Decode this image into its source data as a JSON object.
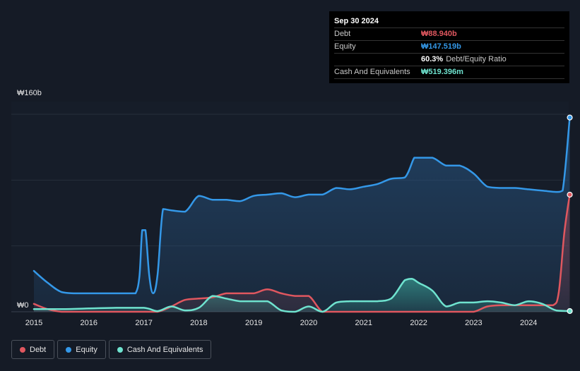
{
  "tooltip": {
    "date": "Sep 30 2024",
    "rows": [
      {
        "label": "Debt",
        "value": "₩88.940b",
        "color": "#e0575f",
        "extra": ""
      },
      {
        "label": "Equity",
        "value": "₩147.519b",
        "color": "#3498e8",
        "extra": ""
      },
      {
        "label": "",
        "value": "60.3%",
        "color": "#ffffff",
        "extra": "Debt/Equity Ratio"
      },
      {
        "label": "Cash And Equivalents",
        "value": "₩519.396m",
        "color": "#6fe3cf",
        "extra": ""
      }
    ]
  },
  "legend": [
    {
      "label": "Debt",
      "color": "#e0575f"
    },
    {
      "label": "Equity",
      "color": "#3498e8"
    },
    {
      "label": "Cash And Equivalents",
      "color": "#6fe3cf"
    }
  ],
  "chart_data": {
    "type": "area",
    "title": "",
    "xlabel": "",
    "ylabel": "",
    "unit": "₩ billions",
    "ylim": [
      0,
      160
    ],
    "xlim": [
      2015.0,
      2024.75
    ],
    "y_tick_labels": [
      {
        "value": 0,
        "label": "₩0"
      },
      {
        "value": 160,
        "label": "₩160b"
      }
    ],
    "y_gridlines": [
      0,
      50,
      100,
      150
    ],
    "x_ticks": [
      2015,
      2016,
      2017,
      2018,
      2019,
      2020,
      2021,
      2022,
      2023,
      2024
    ],
    "x_tick_labels": [
      "2015",
      "2016",
      "2017",
      "2018",
      "2019",
      "2020",
      "2021",
      "2022",
      "2023",
      "2024"
    ],
    "series": [
      {
        "name": "Equity",
        "color": "#3498e8",
        "x": [
          2015.0,
          2015.25,
          2015.5,
          2015.75,
          2016.0,
          2016.25,
          2016.5,
          2016.75,
          2016.85,
          2016.92,
          2016.97,
          2017.03,
          2017.1,
          2017.17,
          2017.25,
          2017.35,
          2017.5,
          2017.75,
          2018.0,
          2018.25,
          2018.5,
          2018.75,
          2019.0,
          2019.25,
          2019.5,
          2019.75,
          2020.0,
          2020.25,
          2020.5,
          2020.75,
          2021.0,
          2021.25,
          2021.5,
          2021.75,
          2021.92,
          2022.0,
          2022.25,
          2022.5,
          2022.75,
          2023.0,
          2023.25,
          2023.5,
          2023.75,
          2024.0,
          2024.25,
          2024.5,
          2024.62,
          2024.75
        ],
        "values": [
          31,
          22,
          15,
          14,
          14,
          14,
          14,
          14,
          14,
          27,
          62,
          62,
          27,
          14,
          28,
          78,
          77,
          76,
          88,
          85,
          85,
          84,
          88,
          89,
          90,
          87,
          89,
          89,
          94,
          93,
          95,
          97,
          101,
          102,
          117,
          117,
          117,
          111,
          111,
          105,
          95,
          94,
          94,
          93,
          92,
          91,
          92,
          147.519
        ]
      },
      {
        "name": "Debt",
        "color": "#e0575f",
        "x": [
          2015.0,
          2015.25,
          2015.5,
          2015.75,
          2016.0,
          2016.5,
          2017.0,
          2017.25,
          2017.5,
          2017.75,
          2018.0,
          2018.25,
          2018.5,
          2018.75,
          2019.0,
          2019.25,
          2019.5,
          2019.75,
          2020.0,
          2020.25,
          2020.5,
          2020.75,
          2021.0,
          2021.5,
          2022.0,
          2022.5,
          2022.75,
          2023.0,
          2023.25,
          2023.5,
          2023.75,
          2024.0,
          2024.25,
          2024.45,
          2024.55,
          2024.65,
          2024.75
        ],
        "values": [
          6,
          2,
          0,
          0,
          0,
          0,
          0,
          0,
          4,
          9,
          10,
          11,
          14,
          14,
          14,
          17,
          14,
          12,
          12,
          0,
          0,
          0,
          0,
          0,
          0,
          0,
          0,
          0,
          4,
          5,
          5,
          5,
          5,
          5,
          15,
          60,
          88.94
        ]
      },
      {
        "name": "Cash And Equivalents",
        "color": "#6fe3cf",
        "x": [
          2015.0,
          2015.5,
          2016.0,
          2016.5,
          2017.0,
          2017.25,
          2017.5,
          2017.75,
          2018.0,
          2018.25,
          2018.5,
          2018.75,
          2019.0,
          2019.25,
          2019.5,
          2019.75,
          2020.0,
          2020.25,
          2020.5,
          2020.75,
          2021.0,
          2021.25,
          2021.5,
          2021.75,
          2021.88,
          2022.0,
          2022.25,
          2022.5,
          2022.75,
          2023.0,
          2023.25,
          2023.5,
          2023.75,
          2024.0,
          2024.25,
          2024.5,
          2024.75
        ],
        "values": [
          2,
          2,
          2.5,
          3,
          3,
          0.5,
          4,
          1,
          3,
          12,
          10,
          8,
          8,
          8,
          1,
          0,
          4,
          0,
          7,
          8,
          8,
          8,
          10,
          24,
          25,
          22,
          16,
          4,
          7,
          7,
          8,
          7,
          5,
          8,
          6,
          1,
          0.519
        ]
      }
    ]
  }
}
